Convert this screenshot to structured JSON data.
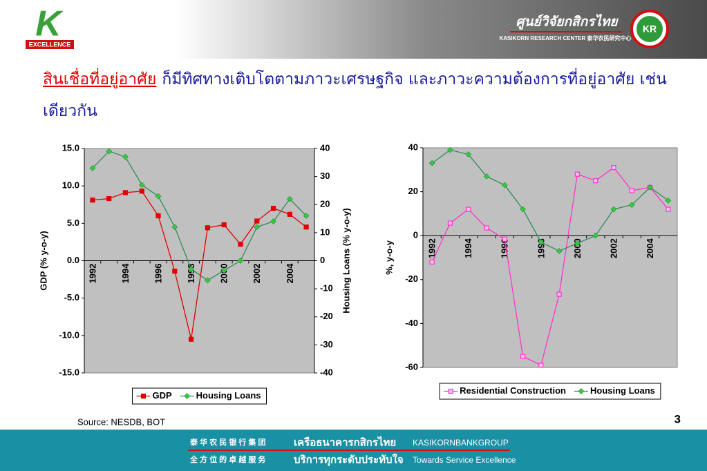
{
  "header": {
    "logo_letter": "K",
    "logo_text": "EXCELLENCE",
    "center_thai": "ศูนย์วิจัยกสิกรไทย",
    "center_english": "KASIKORN RESEARCH CENTER 泰华农民研究中心",
    "emblem": "KR"
  },
  "headline": {
    "highlight": "สินเชื่อที่อยู่อาศัย",
    "text": "ก็มีทิศทางเติบโตตามภาวะเศรษฐกิจ และภาวะความต้องการที่อยู่อาศัย เช่นเดียวกัน"
  },
  "chart_data": [
    {
      "type": "line",
      "y_label": "GDP (% y-o-y)",
      "y2_label": "Housing Loans (% y-o-y)",
      "categories": [
        "1992",
        null,
        "1994",
        null,
        "1996",
        null,
        "1998",
        null,
        "2000",
        null,
        "2002",
        null,
        "2004",
        null
      ],
      "series": [
        {
          "name": "GDP",
          "color": "#e00000",
          "marker": "square",
          "values": [
            8.1,
            8.3,
            9.1,
            9.3,
            6.0,
            -1.4,
            -10.5,
            4.4,
            4.8,
            2.2,
            5.3,
            7.0,
            6.2,
            4.5
          ]
        },
        {
          "name": "Housing Loans",
          "color": "#2e8b57",
          "marker": "diamond",
          "axis": "y2",
          "values": [
            33,
            39,
            37,
            27,
            23,
            12,
            -3,
            -7,
            -3.5,
            0,
            12,
            14,
            22,
            16
          ]
        }
      ],
      "ylim": [
        -15,
        15
      ],
      "yticks": [
        {
          "value": -15,
          "label": "-15.0"
        },
        {
          "value": -10,
          "label": "-10.0"
        },
        {
          "value": -5,
          "label": "-5.0"
        },
        {
          "value": 0,
          "label": "0.0"
        },
        {
          "value": 5,
          "label": "5.0"
        },
        {
          "value": 10,
          "label": "10.0"
        },
        {
          "value": 15,
          "label": "15.0"
        }
      ],
      "y2lim": [
        -40,
        40
      ],
      "y2ticks": [
        -40,
        -30,
        -20,
        -10,
        0,
        10,
        20,
        30,
        40
      ],
      "legend": "bottom",
      "plot_color": "#c0c0c0"
    },
    {
      "type": "line",
      "y_label": "%, y-o-y",
      "categories": [
        "1992",
        null,
        "1994",
        null,
        "1996",
        null,
        "1998",
        null,
        "2000",
        null,
        "2002",
        null,
        "2004",
        null
      ],
      "series": [
        {
          "name": "Residential Construction",
          "color": "#ff33cc",
          "marker": "square",
          "values": [
            -12,
            5.7,
            12,
            3.5,
            -1.6,
            -55,
            -59,
            -26.7,
            28,
            25,
            31,
            20.5,
            22,
            12
          ]
        },
        {
          "name": "Housing Loans",
          "color": "#2e8b57",
          "marker": "diamond",
          "values": [
            33,
            39,
            37,
            27,
            23,
            12,
            -3,
            -7,
            -3.5,
            0,
            12,
            14,
            22,
            16
          ]
        }
      ],
      "ylim": [
        -60,
        40
      ],
      "yticks": [
        -60,
        -40,
        -20,
        0,
        20,
        40
      ],
      "legend": "bottom",
      "plot_color": "#c0c0c0"
    }
  ],
  "source": "Source: NESDB, BOT",
  "page_number": "3",
  "footer": {
    "cn_1": "泰 华 农 民 银 行 集 团",
    "th_1": "เครือธนาคารกสิกรไทย",
    "en_1": "KASIKORNBANKGROUP",
    "cn_2": "全 方 位 的 卓 越 服 务",
    "th_2": "บริการทุกระดับประทับใจ",
    "en_2": "Towards Service Excellence"
  }
}
